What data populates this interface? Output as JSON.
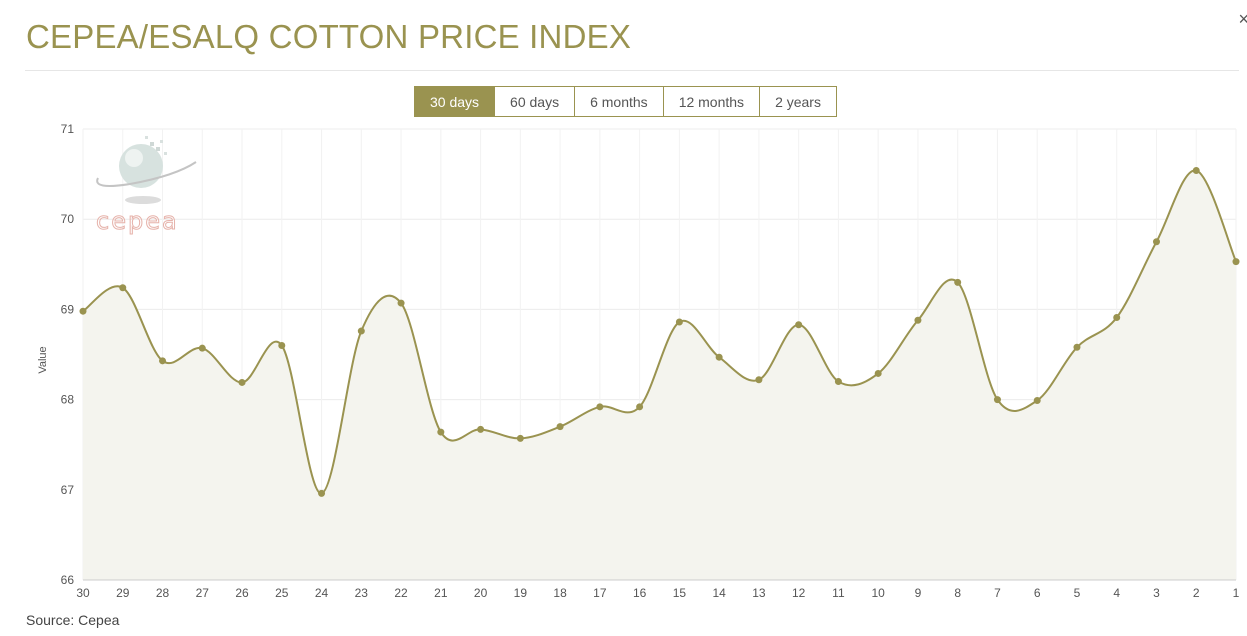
{
  "header": {
    "title": "CEPEA/ESALQ COTTON PRICE INDEX",
    "close_label": "×"
  },
  "period_buttons": [
    {
      "label": "30 days",
      "active": true
    },
    {
      "label": "60 days",
      "active": false
    },
    {
      "label": "6 months",
      "active": false
    },
    {
      "label": "12 months",
      "active": false
    },
    {
      "label": "2 years",
      "active": false
    }
  ],
  "watermark": {
    "text": "cepea"
  },
  "footer": {
    "source": "Source: Cepea"
  },
  "colors": {
    "accent": "#9a9350",
    "area_fill": "#f4f4ee",
    "grid": "#ececec",
    "watermark_text": "#ecc3bd"
  },
  "chart_data": {
    "type": "area",
    "ylabel": "Value",
    "ylim": [
      66,
      71
    ],
    "yticks": [
      66,
      67,
      68,
      69,
      70,
      71
    ],
    "smooth": true,
    "grid": true,
    "categories": [
      "30",
      "29",
      "28",
      "27",
      "26",
      "25",
      "24",
      "23",
      "22",
      "21",
      "20",
      "19",
      "18",
      "17",
      "16",
      "15",
      "14",
      "13",
      "12",
      "11",
      "10",
      "9",
      "8",
      "7",
      "6",
      "5",
      "4",
      "3",
      "2",
      "1"
    ],
    "values": [
      68.98,
      69.24,
      68.43,
      68.57,
      68.19,
      68.6,
      66.96,
      68.76,
      69.07,
      67.64,
      67.67,
      67.57,
      67.7,
      67.92,
      67.92,
      68.86,
      68.47,
      68.22,
      68.83,
      68.2,
      68.29,
      68.88,
      69.3,
      68.0,
      67.99,
      68.58,
      68.91,
      69.75,
      70.54,
      69.53
    ]
  }
}
